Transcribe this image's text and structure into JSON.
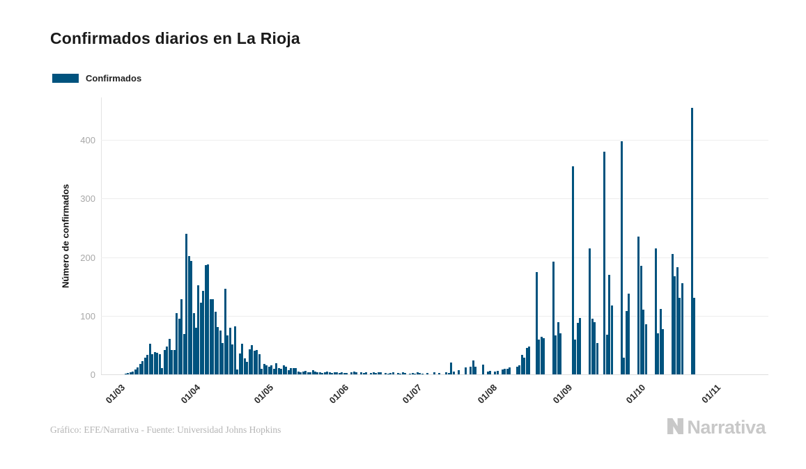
{
  "title": "Confirmados diarios en La Rioja",
  "legend": {
    "label": "Confirmados",
    "color": "#00537e"
  },
  "footer": {
    "credit": "Gráfico: EFE/Narrativa - Fuente: Universidad Johns Hopkins",
    "brand": "Narrativa"
  },
  "colors": {
    "bar": "#00537e",
    "grid": "#ededed",
    "axis": "#e3e3e3",
    "ytick_text": "#a8a8a8",
    "xtick_text": "#2b2b2b",
    "brand_gray": "#c8c8c8"
  },
  "chart_data": {
    "type": "bar",
    "title": "Confirmados diarios en La Rioja",
    "xlabel": "",
    "ylabel": "Número de confirmados",
    "series_name": "Confirmados",
    "bar_color": "#00537e",
    "grid": "horizontal",
    "legend_position": "top-left",
    "ylim": [
      0,
      473
    ],
    "yticks": [
      0,
      100,
      200,
      300,
      400
    ],
    "x_start_date": "01/03",
    "x_end_date": "01/11",
    "x_ticks": [
      {
        "label": "01/03",
        "day": 0
      },
      {
        "label": "01/04",
        "day": 31
      },
      {
        "label": "01/05",
        "day": 61
      },
      {
        "label": "01/06",
        "day": 92
      },
      {
        "label": "01/07",
        "day": 122
      },
      {
        "label": "01/08",
        "day": 153
      },
      {
        "label": "01/09",
        "day": 184
      },
      {
        "label": "01/10",
        "day": 214
      },
      {
        "label": "01/11",
        "day": 245
      }
    ],
    "values": [
      0,
      1,
      2,
      3,
      5,
      8,
      12,
      18,
      23,
      28,
      33,
      52,
      35,
      38,
      37,
      34,
      11,
      41,
      47,
      61,
      41,
      42,
      105,
      95,
      128,
      69,
      240,
      202,
      193,
      105,
      79,
      152,
      122,
      143,
      186,
      188,
      128,
      128,
      107,
      81,
      75,
      54,
      146,
      67,
      79,
      51,
      82,
      8,
      36,
      52,
      27,
      21,
      43,
      50,
      40,
      42,
      34,
      10,
      18,
      15,
      13,
      15,
      9,
      19,
      11,
      9,
      15,
      13,
      7,
      11,
      11,
      11,
      5,
      3,
      5,
      6,
      3,
      4,
      7,
      5,
      3,
      4,
      2,
      3,
      5,
      3,
      2,
      4,
      3,
      2,
      3,
      2,
      2,
      0,
      3,
      5,
      3,
      0,
      4,
      2,
      3,
      0,
      2,
      3,
      2,
      4,
      3,
      0,
      2,
      1,
      2,
      3,
      0,
      2,
      1,
      3,
      2,
      0,
      1,
      2,
      1,
      3,
      2,
      1,
      0,
      2,
      0,
      0,
      3,
      0,
      2,
      0,
      0,
      3,
      2,
      20,
      5,
      0,
      7,
      0,
      0,
      12,
      0,
      13,
      24,
      13,
      0,
      0,
      17,
      0,
      5,
      6,
      0,
      5,
      6,
      0,
      8,
      10,
      9,
      12,
      0,
      0,
      13,
      15,
      33,
      28,
      45,
      48,
      0,
      0,
      175,
      59,
      64,
      62,
      0,
      0,
      0,
      192,
      66,
      89,
      70,
      0,
      0,
      0,
      0,
      355,
      59,
      88,
      96,
      0,
      0,
      0,
      215,
      95,
      89,
      53,
      0,
      0,
      380,
      68,
      170,
      118,
      0,
      0,
      0,
      398,
      29,
      108,
      138,
      0,
      0,
      0,
      235,
      185,
      110,
      85,
      0,
      0,
      0,
      215,
      70,
      111,
      77,
      0,
      0,
      0,
      205,
      167,
      183,
      131,
      155,
      0,
      0,
      0,
      455,
      131,
      0,
      0,
      0,
      0,
      0,
      0,
      0,
      0,
      0
    ]
  }
}
